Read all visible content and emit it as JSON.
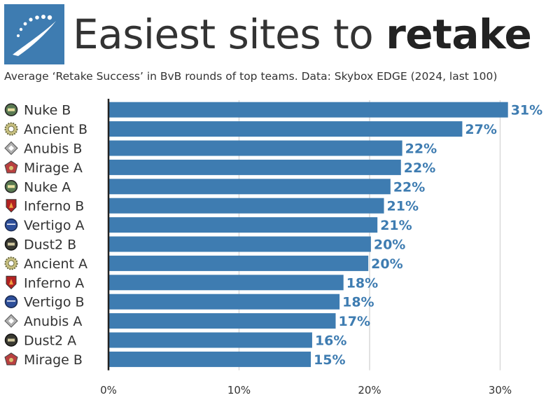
{
  "header": {
    "title_regular": "Easiest sites to ",
    "title_bold": "retake",
    "subtitle": "Average ‘Retake Success’ in BvB rounds of top teams. Data: Skybox EDGE (2024, last 100)"
  },
  "colors": {
    "bar": "#3e7cb1",
    "value_text": "#3e7cb1",
    "logo_bg": "#3e7cb1",
    "grid": "#d9d9d9",
    "axis": "#222222"
  },
  "chart_data": {
    "type": "bar",
    "orientation": "horizontal",
    "title": "Easiest sites to retake",
    "xlabel": "",
    "ylabel": "",
    "xlim": [
      0,
      0.32
    ],
    "grid": true,
    "categories": [
      "Nuke B",
      "Ancient B",
      "Anubis B",
      "Mirage A",
      "Nuke A",
      "Inferno B",
      "Vertigo A",
      "Dust2 B",
      "Ancient A",
      "Inferno A",
      "Vertigo B",
      "Anubis A",
      "Dust2 A",
      "Mirage B"
    ],
    "values": [
      0.306,
      0.271,
      0.225,
      0.224,
      0.216,
      0.211,
      0.206,
      0.201,
      0.199,
      0.18,
      0.177,
      0.174,
      0.156,
      0.155
    ],
    "value_labels": [
      "31%",
      "27%",
      "22%",
      "22%",
      "22%",
      "21%",
      "21%",
      "20%",
      "20%",
      "18%",
      "18%",
      "17%",
      "16%",
      "15%"
    ],
    "map_icons": [
      "nuke-icon",
      "ancient-icon",
      "anubis-icon",
      "mirage-icon",
      "nuke-icon",
      "inferno-icon",
      "vertigo-icon",
      "dust2-icon",
      "ancient-icon",
      "inferno-icon",
      "vertigo-icon",
      "anubis-icon",
      "dust2-icon",
      "mirage-icon"
    ],
    "x_ticks": [
      0,
      0.1,
      0.2,
      0.3
    ],
    "x_tick_labels": [
      "0%",
      "10%",
      "20%",
      "30%"
    ]
  }
}
